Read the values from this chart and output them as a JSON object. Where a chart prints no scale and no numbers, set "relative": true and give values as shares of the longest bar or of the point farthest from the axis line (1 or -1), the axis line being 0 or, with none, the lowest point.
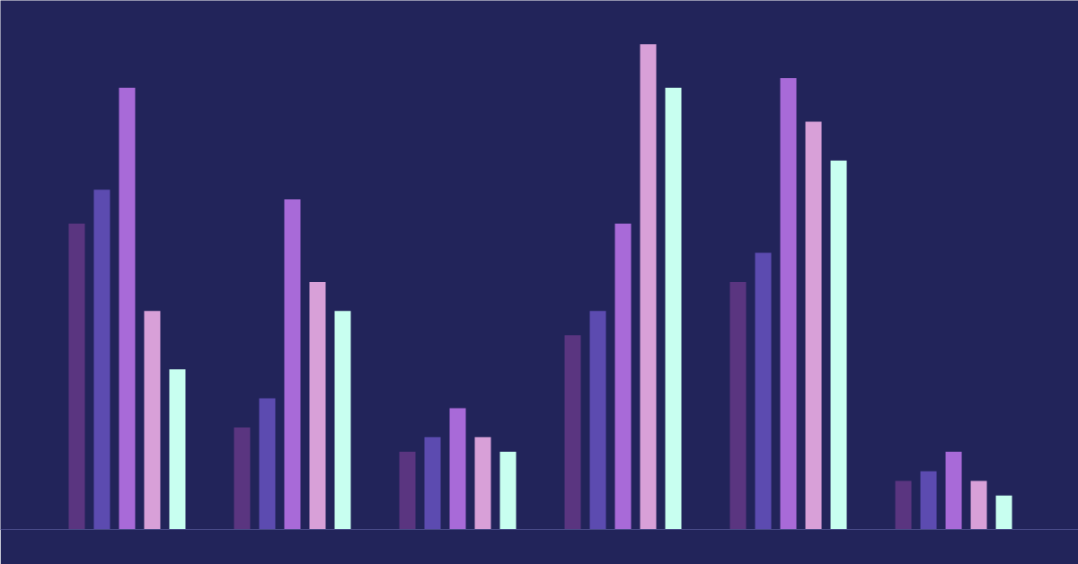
{
  "chart_data": {
    "type": "bar",
    "relative": true,
    "categories": [
      null,
      null,
      null,
      null,
      null,
      null
    ],
    "series": [
      {
        "color": "#5a3580",
        "values": [
          0.63,
          0.21,
          0.16,
          0.4,
          0.51,
          0.1
        ]
      },
      {
        "color": "#5c4bb0",
        "values": [
          0.7,
          0.27,
          0.19,
          0.45,
          0.57,
          0.12
        ]
      },
      {
        "color": "#a86ad8",
        "values": [
          0.91,
          0.68,
          0.25,
          0.63,
          0.93,
          0.16
        ]
      },
      {
        "color": "#d8a0d8",
        "values": [
          0.45,
          0.51,
          0.19,
          1,
          0.84,
          0.1
        ]
      },
      {
        "color": "#c8fff0",
        "values": [
          0.33,
          0.45,
          0.16,
          0.91,
          0.76,
          0.07
        ]
      }
    ]
  }
}
